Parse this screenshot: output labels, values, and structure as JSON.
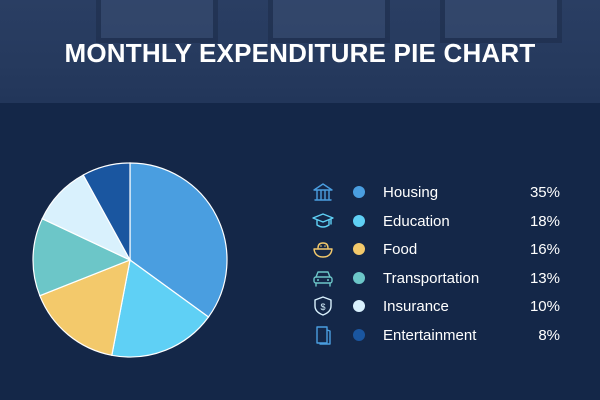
{
  "title": "MONTHLY EXPENDITURE PIE CHART",
  "chart_data": {
    "type": "pie",
    "title": "MONTHLY EXPENDITURE PIE CHART",
    "categories": [
      "Housing",
      "Education",
      "Food",
      "Transportation",
      "Insurance",
      "Entertainment"
    ],
    "values": [
      35,
      18,
      16,
      13,
      10,
      8
    ],
    "labels": [
      "35%",
      "18%",
      "16%",
      "13%",
      "10%",
      "8%"
    ],
    "colors": [
      "#4a9ee0",
      "#5fd0f5",
      "#f3c96b",
      "#6cc6c8",
      "#d9f1fd",
      "#1a56a0"
    ],
    "icons": [
      "house-icon",
      "graduation-cap-icon",
      "food-bowl-icon",
      "car-icon",
      "shield-dollar-icon",
      "ticket-icon"
    ],
    "icon_colors": [
      "#4a9ee0",
      "#5fd0f5",
      "#f3c96b",
      "#6cc6c8",
      "#d9f1fd",
      "#4a9ee0"
    ],
    "legend_position": "right"
  }
}
